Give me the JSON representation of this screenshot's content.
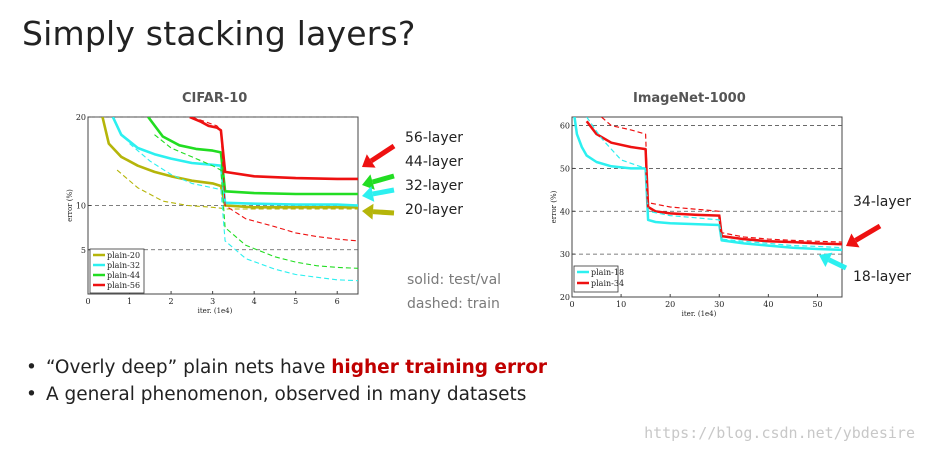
{
  "slide": {
    "title": "Simply stacking layers?",
    "note_solid": "solid: test/val",
    "note_dashed": "dashed: train",
    "bullet1_pre": "“Overly deep” plain nets have ",
    "bullet1_highlight": "higher training error",
    "bullet2": "A general phenomenon, observed in many datasets",
    "bullet_marker": "•",
    "watermark": "https://blog.csdn.net/ybdesire"
  },
  "colors": {
    "plain20": "#b5b50a",
    "plain32": "#2cf0f0",
    "plain44": "#22dd22",
    "plain56": "#ee1111",
    "plain18": "#2cf0f0",
    "plain34": "#ee1111"
  },
  "chart_data": [
    {
      "type": "line",
      "title": "CIFAR-10",
      "xlabel": "iter. (1e4)",
      "ylabel": "error (%)",
      "xlim": [
        0,
        6.5
      ],
      "ylim": [
        0,
        20
      ],
      "xticks": [
        "0",
        "1",
        "2",
        "3",
        "4",
        "5",
        "6"
      ],
      "yticks": [
        "5",
        "10",
        "20"
      ],
      "legend": "bottom-left",
      "series": [
        {
          "name": "plain-20",
          "style": "solid",
          "color": "plain20",
          "x": [
            0.35,
            0.5,
            0.8,
            1.2,
            1.6,
            2.0,
            2.5,
            3.0,
            3.2,
            3.3,
            4.0,
            5.0,
            6.0,
            6.5
          ],
          "y": [
            20,
            17,
            15.5,
            14.5,
            13.8,
            13.3,
            12.8,
            12.5,
            12.2,
            10.0,
            9.8,
            9.8,
            9.8,
            9.8
          ]
        },
        {
          "name": "plain-32",
          "style": "solid",
          "color": "plain32",
          "x": [
            0.6,
            0.8,
            1.2,
            1.6,
            2.0,
            2.5,
            3.0,
            3.2,
            3.3,
            4.0,
            5.0,
            6.0,
            6.5
          ],
          "y": [
            20,
            18,
            16.5,
            15.8,
            15.3,
            14.8,
            14.6,
            14.5,
            10.3,
            10.2,
            10.1,
            10.1,
            10.0
          ]
        },
        {
          "name": "plain-44",
          "style": "solid",
          "color": "plain44",
          "x": [
            1.45,
            1.8,
            2.2,
            2.6,
            3.0,
            3.2,
            3.3,
            4.0,
            5.0,
            6.0,
            6.5
          ],
          "y": [
            20,
            17.8,
            16.8,
            16.4,
            16.2,
            16.0,
            11.6,
            11.4,
            11.3,
            11.3,
            11.3
          ]
        },
        {
          "name": "plain-56",
          "style": "solid",
          "color": "plain56",
          "x": [
            2.45,
            2.7,
            2.9,
            3.1,
            3.2,
            3.3,
            4.0,
            5.0,
            6.0,
            6.5
          ],
          "y": [
            20,
            19.5,
            19.0,
            18.8,
            18.5,
            13.8,
            13.3,
            13.1,
            13.0,
            13.0
          ]
        },
        {
          "name": "plain-20",
          "style": "dashed",
          "color": "plain20",
          "x": [
            0.7,
            1.2,
            1.8,
            2.4,
            3.0,
            3.2,
            3.3,
            4.0,
            5.0,
            6.0,
            6.5
          ],
          "y": [
            14,
            12,
            10.5,
            10,
            9.8,
            9.7,
            9.6,
            9.6,
            9.6,
            9.6,
            9.6
          ]
        },
        {
          "name": "plain-32",
          "style": "dashed",
          "color": "plain32",
          "x": [
            1.0,
            1.5,
            2.0,
            2.5,
            3.0,
            3.2,
            3.3,
            3.8,
            4.5,
            5.0,
            5.5,
            6.0,
            6.5
          ],
          "y": [
            17,
            15,
            13.5,
            12.5,
            12,
            11.8,
            6,
            4,
            2.8,
            2.2,
            1.9,
            1.6,
            1.5
          ]
        },
        {
          "name": "plain-44",
          "style": "dashed",
          "color": "plain44",
          "x": [
            1.6,
            2.0,
            2.5,
            3.0,
            3.2,
            3.3,
            3.8,
            4.5,
            5.0,
            5.5,
            6.0,
            6.5
          ],
          "y": [
            18,
            16.5,
            15.5,
            14.5,
            14,
            7.5,
            5.5,
            4.2,
            3.6,
            3.2,
            3.0,
            2.9
          ]
        },
        {
          "name": "plain-56",
          "style": "dashed",
          "color": "plain56",
          "x": [
            2.5,
            2.8,
            3.1,
            3.2,
            3.3,
            3.8,
            4.5,
            5.0,
            5.5,
            6.0,
            6.5
          ],
          "y": [
            20,
            19.5,
            19,
            18.5,
            10,
            8.5,
            7.6,
            6.9,
            6.5,
            6.2,
            6.0
          ]
        }
      ],
      "legend_entries": [
        "plain-20",
        "plain-32",
        "plain-44",
        "plain-56"
      ],
      "annotations": [
        {
          "text": "56-layer",
          "color": "plain56"
        },
        {
          "text": "44-layer",
          "color": "plain44"
        },
        {
          "text": "32-layer",
          "color": "plain32"
        },
        {
          "text": "20-layer",
          "color": "plain20"
        }
      ]
    },
    {
      "type": "line",
      "title": "ImageNet-1000",
      "xlabel": "iter. (1e4)",
      "ylabel": "error (%)",
      "xlim": [
        0,
        55
      ],
      "ylim": [
        20,
        62
      ],
      "xticks": [
        "0",
        "10",
        "20",
        "30",
        "40",
        "50"
      ],
      "yticks": [
        "20",
        "30",
        "40",
        "50",
        "60"
      ],
      "legend": "bottom-left",
      "series": [
        {
          "name": "plain-18",
          "style": "solid",
          "color": "plain18",
          "x": [
            0.5,
            1,
            2,
            3,
            5,
            8,
            12,
            15,
            15.5,
            17,
            20,
            25,
            30,
            30.5,
            35,
            40,
            45,
            50,
            55
          ],
          "y": [
            62,
            58,
            55,
            53,
            51.5,
            50.5,
            50,
            50,
            38,
            37.5,
            37.2,
            37,
            36.8,
            33.2,
            32.5,
            32,
            31.5,
            31.2,
            31
          ],
          "width": 2.5
        },
        {
          "name": "plain-34",
          "style": "solid",
          "color": "plain34",
          "x": [
            3,
            5,
            8,
            12,
            15,
            15.5,
            17,
            20,
            25,
            30,
            30.5,
            35,
            40,
            45,
            50,
            55
          ],
          "y": [
            61,
            58,
            56,
            55,
            54.5,
            41,
            40,
            39.5,
            39.2,
            39,
            34.2,
            33.5,
            33,
            32.8,
            32.5,
            32.3
          ],
          "width": 2.5
        },
        {
          "name": "plain-18",
          "style": "dashed",
          "color": "plain18",
          "x": [
            3,
            6,
            10,
            15,
            15.5,
            20,
            25,
            30,
            30.5,
            35,
            40,
            45,
            50,
            55
          ],
          "y": [
            62,
            57,
            52,
            50,
            40,
            39,
            38.5,
            38,
            33.5,
            33,
            32.5,
            32,
            31.8,
            31.5
          ],
          "width": 1.2
        },
        {
          "name": "plain-34",
          "style": "dashed",
          "color": "plain34",
          "x": [
            6,
            8,
            12,
            15,
            15.5,
            20,
            25,
            30,
            30.5,
            35,
            40,
            45,
            50,
            55
          ],
          "y": [
            62,
            60,
            59,
            58,
            42,
            41,
            40.5,
            40,
            35,
            34,
            33.5,
            33.2,
            33,
            32.8
          ],
          "width": 1.2
        }
      ],
      "legend_entries": [
        "plain-18",
        "plain-34"
      ],
      "annotations": [
        {
          "text": "34-layer",
          "color": "plain34"
        },
        {
          "text": "18-layer",
          "color": "plain18"
        }
      ]
    }
  ]
}
